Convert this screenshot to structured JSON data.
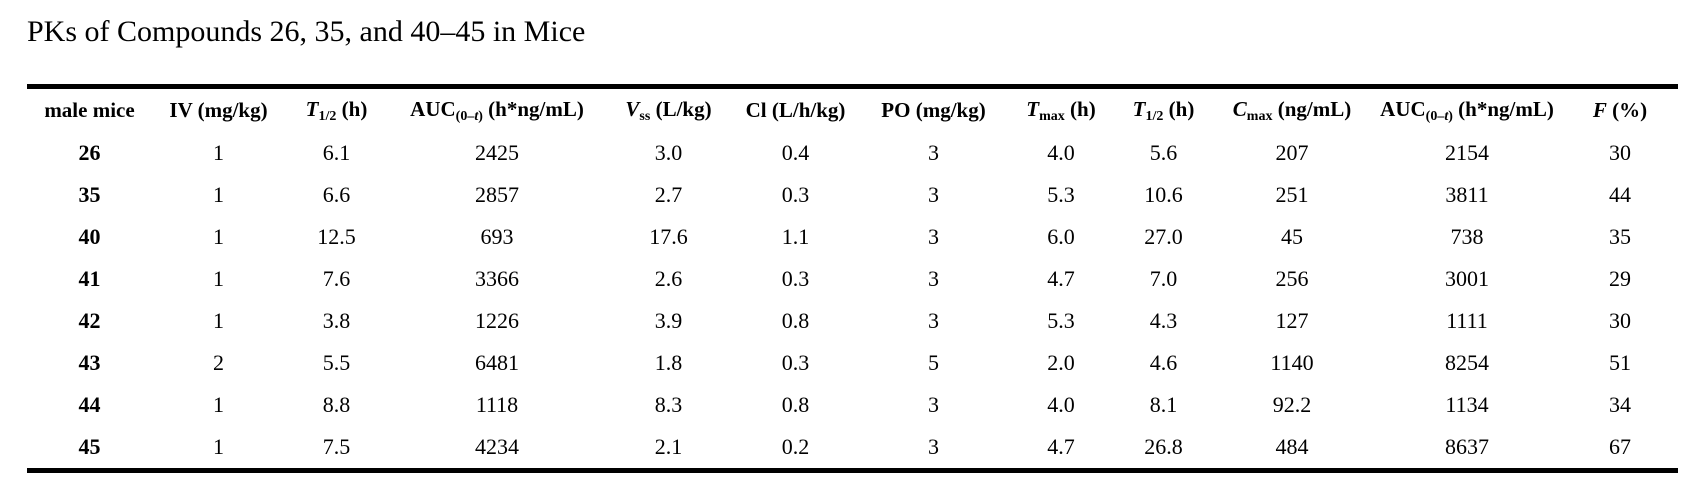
{
  "title": "PKs of Compounds 26, 35, and 40–45 in Mice",
  "colors": {
    "text": "#000000",
    "background": "#ffffff",
    "rule": "#000000"
  },
  "table": {
    "columns": [
      {
        "id": "male-mice",
        "label": "male mice",
        "parts": [
          {
            "t": "male mice",
            "s": "b"
          }
        ]
      },
      {
        "id": "iv-dose",
        "label": "IV (mg/kg)",
        "parts": [
          {
            "t": "IV (mg/kg)",
            "s": "b"
          }
        ]
      },
      {
        "id": "iv-t-half",
        "label": "T1/2 (h)",
        "parts": [
          {
            "t": "T",
            "s": "bi"
          },
          {
            "t": "1/2",
            "s": "sub"
          },
          {
            "t": " (h)",
            "s": "b"
          }
        ]
      },
      {
        "id": "iv-auc",
        "label": "AUC(0–t) (h*ng/mL)",
        "parts": [
          {
            "t": "AUC",
            "s": "b"
          },
          {
            "t": "(0–",
            "s": "sub"
          },
          {
            "t": "t",
            "s": "subi"
          },
          {
            "t": ")",
            "s": "sub"
          },
          {
            "t": " (h*ng/mL)",
            "s": "b"
          }
        ]
      },
      {
        "id": "vss",
        "label": "Vss (L/kg)",
        "parts": [
          {
            "t": "V",
            "s": "bi"
          },
          {
            "t": "ss",
            "s": "sub"
          },
          {
            "t": " (L/kg)",
            "s": "b"
          }
        ]
      },
      {
        "id": "cl",
        "label": "Cl (L/h/kg)",
        "parts": [
          {
            "t": "Cl (L/h/kg)",
            "s": "b"
          }
        ]
      },
      {
        "id": "po-dose",
        "label": "PO (mg/kg)",
        "parts": [
          {
            "t": "PO (mg/kg)",
            "s": "b"
          }
        ]
      },
      {
        "id": "tmax",
        "label": "Tmax (h)",
        "parts": [
          {
            "t": "T",
            "s": "bi"
          },
          {
            "t": "max",
            "s": "sub"
          },
          {
            "t": " (h)",
            "s": "b"
          }
        ]
      },
      {
        "id": "po-t-half",
        "label": "T1/2 (h)",
        "parts": [
          {
            "t": "T",
            "s": "bi"
          },
          {
            "t": "1/2",
            "s": "sub"
          },
          {
            "t": " (h)",
            "s": "b"
          }
        ]
      },
      {
        "id": "cmax",
        "label": "Cmax (ng/mL)",
        "parts": [
          {
            "t": "C",
            "s": "bi"
          },
          {
            "t": "max",
            "s": "sub"
          },
          {
            "t": " (ng/mL)",
            "s": "b"
          }
        ]
      },
      {
        "id": "po-auc",
        "label": "AUC(0–t) (h*ng/mL)",
        "parts": [
          {
            "t": "AUC",
            "s": "b"
          },
          {
            "t": "(0–",
            "s": "sub"
          },
          {
            "t": "t",
            "s": "subi"
          },
          {
            "t": ")",
            "s": "sub"
          },
          {
            "t": " (h*ng/mL)",
            "s": "b"
          }
        ]
      },
      {
        "id": "f",
        "label": "F (%)",
        "parts": [
          {
            "t": "F",
            "s": "bi"
          },
          {
            "t": " (%)",
            "s": "b"
          }
        ]
      }
    ],
    "rows": [
      {
        "compound": "26",
        "values": [
          "1",
          "6.1",
          "2425",
          "3.0",
          "0.4",
          "3",
          "4.0",
          "5.6",
          "207",
          "2154",
          "30"
        ]
      },
      {
        "compound": "35",
        "values": [
          "1",
          "6.6",
          "2857",
          "2.7",
          "0.3",
          "3",
          "5.3",
          "10.6",
          "251",
          "3811",
          "44"
        ]
      },
      {
        "compound": "40",
        "values": [
          "1",
          "12.5",
          "693",
          "17.6",
          "1.1",
          "3",
          "6.0",
          "27.0",
          "45",
          "738",
          "35"
        ]
      },
      {
        "compound": "41",
        "values": [
          "1",
          "7.6",
          "3366",
          "2.6",
          "0.3",
          "3",
          "4.7",
          "7.0",
          "256",
          "3001",
          "29"
        ]
      },
      {
        "compound": "42",
        "values": [
          "1",
          "3.8",
          "1226",
          "3.9",
          "0.8",
          "3",
          "5.3",
          "4.3",
          "127",
          "1111",
          "30"
        ]
      },
      {
        "compound": "43",
        "values": [
          "2",
          "5.5",
          "6481",
          "1.8",
          "0.3",
          "5",
          "2.0",
          "4.6",
          "1140",
          "8254",
          "51"
        ]
      },
      {
        "compound": "44",
        "values": [
          "1",
          "8.8",
          "1118",
          "8.3",
          "0.8",
          "3",
          "4.0",
          "8.1",
          "92.2",
          "1134",
          "34"
        ]
      },
      {
        "compound": "45",
        "values": [
          "1",
          "7.5",
          "4234",
          "2.1",
          "0.2",
          "3",
          "4.7",
          "26.8",
          "484",
          "8637",
          "67"
        ]
      }
    ]
  }
}
